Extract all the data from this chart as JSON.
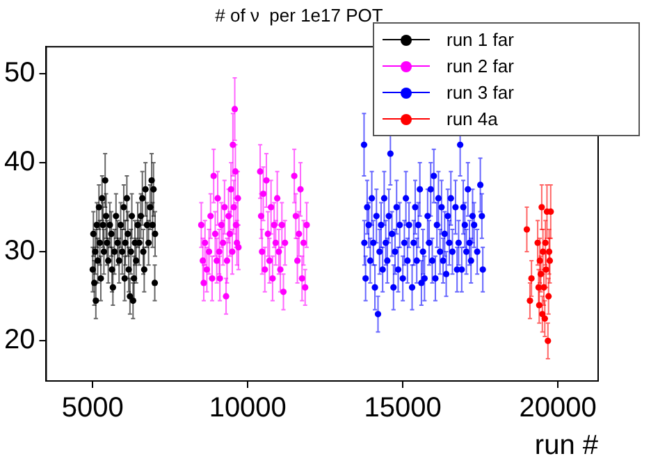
{
  "chart_data": {
    "type": "scatter",
    "title": "# of ν  per 1e17 POT",
    "xlabel": "run #",
    "xlim": [
      3500,
      21300
    ],
    "ylim": [
      15.5,
      53
    ],
    "xticks": [
      5000,
      10000,
      15000,
      20000
    ],
    "yticks": [
      20,
      30,
      40,
      50
    ],
    "grid": false,
    "legend": "top right",
    "marker": "circle",
    "series": [
      {
        "name": "run 1 far",
        "color": "#000000",
        "x": [
          5000,
          5020,
          5050,
          5080,
          5100,
          5130,
          5160,
          5200,
          5230,
          5260,
          5300,
          5330,
          5360,
          5400,
          5430,
          5460,
          5500,
          5550,
          5600,
          5620,
          5650,
          5700,
          5750,
          5800,
          5850,
          5900,
          5950,
          6000,
          6030,
          6050,
          6100,
          6130,
          6160,
          6200,
          6230,
          6260,
          6300,
          6330,
          6360,
          6400,
          6450,
          6500,
          6550,
          6600,
          6630,
          6660,
          6700,
          6750,
          6800,
          6850,
          6900,
          6930,
          6960,
          7000,
          7010
        ],
        "values": [
          28,
          32,
          26.5,
          30,
          24.5,
          33,
          29,
          35,
          31,
          27,
          36,
          33,
          30,
          38,
          34,
          31,
          29,
          33,
          32,
          28,
          26,
          30,
          34,
          31,
          29,
          33,
          30,
          35,
          27,
          31,
          36,
          32,
          28,
          25,
          30,
          34,
          24.5,
          27,
          31,
          29,
          33,
          31,
          34,
          36,
          30,
          28,
          37,
          33,
          31,
          35,
          38,
          33,
          37,
          26.5,
          32
        ],
        "errors": [
          2.5,
          2.5,
          2.5,
          2.5,
          2,
          2.5,
          2.5,
          2.5,
          2.5,
          2.5,
          2.5,
          2.5,
          2.5,
          3,
          2.5,
          2.5,
          2.5,
          2.5,
          2.5,
          2.5,
          2,
          2.5,
          2.5,
          2.5,
          2.5,
          2.5,
          2.5,
          2.5,
          2.5,
          2.5,
          2.5,
          2.5,
          2.5,
          2,
          2.5,
          2.5,
          2,
          2.5,
          2.5,
          2.5,
          2.5,
          2.5,
          2.5,
          3,
          2.5,
          2.5,
          3,
          2.5,
          2.5,
          2.5,
          3,
          2.5,
          3,
          2,
          2.5
        ]
      },
      {
        "name": "run 2 far",
        "color": "#ff00ff",
        "x": [
          8500,
          8550,
          8580,
          8620,
          8680,
          8750,
          8800,
          8850,
          8900,
          8950,
          9000,
          9030,
          9080,
          9100,
          9150,
          9200,
          9250,
          9300,
          9330,
          9380,
          9420,
          9460,
          9500,
          9520,
          9550,
          9580,
          9600,
          9620,
          9650,
          9680,
          9700,
          10400,
          10430,
          10460,
          10500,
          10550,
          10600,
          10650,
          10700,
          10750,
          10800,
          10850,
          10900,
          10950,
          11000,
          11050,
          11100,
          11150,
          11200,
          11500,
          11550,
          11600,
          11650,
          11700,
          11750,
          11800,
          11850,
          11900
        ],
        "values": [
          33,
          29,
          26.5,
          31,
          28,
          30,
          34,
          27,
          38.5,
          32,
          29,
          36,
          30,
          27,
          33,
          31,
          35,
          25,
          29,
          34,
          32,
          37,
          30,
          42,
          35,
          46,
          39,
          33,
          31,
          36,
          30.5,
          39,
          34,
          30,
          36.5,
          28,
          38,
          32,
          29,
          35,
          27,
          33,
          31,
          36,
          30,
          28,
          33,
          25.5,
          31,
          38.5,
          34,
          29,
          32,
          37,
          27,
          31,
          26,
          33
        ],
        "errors": [
          2.5,
          2.5,
          2,
          2.5,
          2.5,
          2.5,
          2.5,
          2.5,
          3,
          2.5,
          2.5,
          3,
          2.5,
          2.5,
          2.5,
          2.5,
          3,
          2,
          2.5,
          3,
          2.5,
          3,
          2.5,
          3.5,
          3,
          3.5,
          3,
          2.5,
          2.5,
          3,
          2.5,
          3,
          2.5,
          2.5,
          3,
          2.5,
          3,
          2.5,
          2.5,
          3,
          2.5,
          2.5,
          2.5,
          3,
          2.5,
          2.5,
          2.5,
          2,
          2.5,
          3,
          2.5,
          2.5,
          2.5,
          3,
          2.5,
          2.5,
          2,
          2.5
        ]
      },
      {
        "name": "run 3 far",
        "color": "#0000ff",
        "x": [
          13750,
          13760,
          13800,
          13850,
          13900,
          13950,
          14000,
          14050,
          14100,
          14150,
          14200,
          14250,
          14300,
          14350,
          14400,
          14450,
          14500,
          14550,
          14600,
          14650,
          14700,
          14750,
          14800,
          14850,
          14900,
          15000,
          15050,
          15100,
          15150,
          15200,
          15300,
          15350,
          15400,
          15450,
          15500,
          15550,
          15600,
          15650,
          15700,
          15800,
          15850,
          15900,
          15950,
          16000,
          16050,
          16100,
          16150,
          16200,
          16250,
          16300,
          16350,
          16400,
          16450,
          16500,
          16550,
          16600,
          16700,
          16750,
          16800,
          16850,
          16900,
          16950,
          17000,
          17050,
          17100,
          17150,
          17200,
          17250,
          17300,
          17400,
          17500,
          17550,
          17580
        ],
        "values": [
          42,
          31,
          27,
          35,
          33,
          29,
          36,
          31,
          26,
          34,
          23,
          30,
          33,
          28,
          36,
          31,
          29,
          34,
          41,
          32,
          26,
          30,
          35,
          28,
          33,
          27,
          31,
          36,
          29,
          33,
          26,
          31,
          35,
          29,
          33,
          37,
          26.5,
          30,
          27,
          34,
          31,
          37,
          29,
          38.5,
          27,
          33,
          36,
          30,
          35,
          29,
          32,
          27.5,
          34,
          31,
          36,
          30,
          35,
          28,
          31,
          42,
          28,
          35,
          33,
          30,
          37,
          31,
          29,
          34,
          33,
          30,
          37.5,
          34,
          28
        ],
        "errors": [
          3.5,
          2.5,
          2.5,
          3,
          2.5,
          2.5,
          3,
          2.5,
          2.5,
          3,
          2,
          2.5,
          2.5,
          2.5,
          3,
          2.5,
          2.5,
          3,
          3.5,
          2.5,
          2.5,
          2.5,
          3,
          2.5,
          2.5,
          2.5,
          2.5,
          3,
          2.5,
          2.5,
          2.5,
          2.5,
          3,
          2.5,
          2.5,
          3,
          2.5,
          2.5,
          2.5,
          3,
          2.5,
          3,
          2.5,
          3,
          2.5,
          2.5,
          3,
          2.5,
          3,
          2.5,
          2.5,
          2.5,
          3,
          2.5,
          3,
          2.5,
          3,
          2.5,
          2.5,
          3.5,
          2.5,
          3,
          2.5,
          2.5,
          3,
          2.5,
          2.5,
          3,
          2.5,
          2.5,
          3,
          2.5,
          2.5
        ]
      },
      {
        "name": "run 4a",
        "color": "#ff0000",
        "x": [
          19000,
          19100,
          19150,
          19350,
          19380,
          19400,
          19420,
          19450,
          19480,
          19500,
          19520,
          19550,
          19580,
          19600,
          19620,
          19650,
          19680,
          19700,
          19720,
          19740,
          19770
        ],
        "values": [
          32.5,
          24.5,
          27,
          31,
          26,
          24,
          29,
          27.5,
          35,
          23,
          30,
          26,
          22.5,
          31,
          28,
          34.5,
          20,
          25,
          30,
          29,
          34.5
        ],
        "errors": [
          2.5,
          2,
          2,
          2.5,
          2,
          2,
          2.5,
          2,
          2.5,
          2,
          2.5,
          2,
          2,
          2.5,
          2,
          3,
          2,
          2,
          2.5,
          2.5,
          3
        ]
      }
    ]
  }
}
